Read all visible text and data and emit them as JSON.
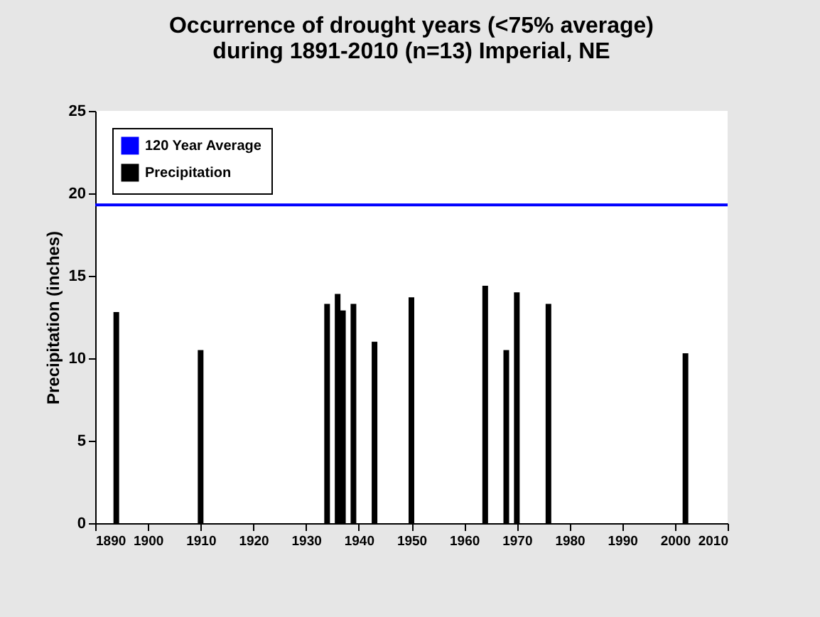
{
  "chart_data": {
    "type": "bar",
    "title": "Occurrence of drought years (<75% average)\nduring 1891-2010 (n=13) Imperial, NE",
    "ylabel": "Precipitation (inches)",
    "x": [
      1894,
      1910,
      1934,
      1936,
      1937,
      1939,
      1943,
      1950,
      1964,
      1968,
      1970,
      1976,
      2002
    ],
    "series": [
      {
        "name": "Precipitation",
        "color": "#000000",
        "values": [
          12.8,
          10.5,
          13.3,
          13.9,
          12.9,
          13.3,
          11.0,
          13.7,
          14.4,
          10.5,
          14.0,
          13.3,
          10.3
        ]
      }
    ],
    "ref_lines": [
      {
        "axis": "y",
        "value": 19.3,
        "label": "120 Year Average",
        "color": "#0000ff"
      }
    ],
    "xlim": [
      1890,
      2010
    ],
    "xticks": [
      1890,
      1900,
      1910,
      1920,
      1930,
      1940,
      1950,
      1960,
      1970,
      1980,
      1990,
      2000,
      2010
    ],
    "ylim": [
      0,
      25
    ],
    "yticks": [
      0,
      5,
      10,
      15,
      20,
      25
    ],
    "grid": false,
    "legend": "top left"
  }
}
